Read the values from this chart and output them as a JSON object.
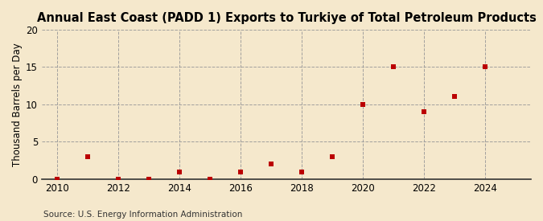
{
  "title": "Annual East Coast (PADD 1) Exports to Turkiye of Total Petroleum Products",
  "ylabel": "Thousand Barrels per Day",
  "source": "Source: U.S. Energy Information Administration",
  "background_color": "#f5e8cc",
  "plot_bg_color": "#f5e8cc",
  "years": [
    2010,
    2011,
    2012,
    2013,
    2014,
    2015,
    2016,
    2017,
    2018,
    2019,
    2020,
    2021,
    2022,
    2023,
    2024
  ],
  "values": [
    0,
    3,
    0,
    0,
    1,
    0,
    1,
    2,
    1,
    3,
    10,
    15,
    9,
    11,
    15
  ],
  "marker_color": "#bb0000",
  "ylim": [
    0,
    20
  ],
  "yticks": [
    0,
    5,
    10,
    15,
    20
  ],
  "xlim": [
    2009.5,
    2025.5
  ],
  "xticks": [
    2010,
    2012,
    2014,
    2016,
    2018,
    2020,
    2022,
    2024
  ],
  "grid_color": "#999999",
  "title_fontsize": 10.5,
  "axis_label_fontsize": 8.5,
  "tick_fontsize": 8.5,
  "source_fontsize": 7.5
}
